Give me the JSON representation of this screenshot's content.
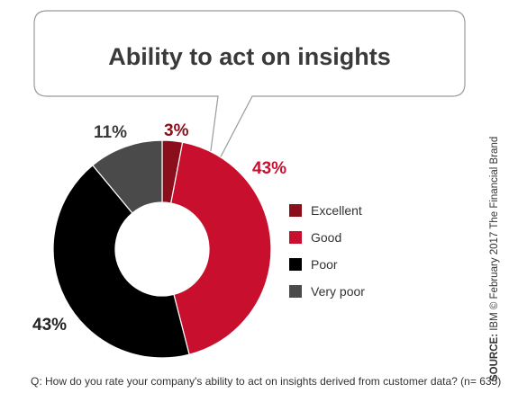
{
  "chart_data": {
    "type": "pie",
    "title": "Ability to act on insights",
    "categories": [
      "Excellent",
      "Good",
      "Poor",
      "Very poor"
    ],
    "values": [
      3,
      43,
      43,
      11
    ],
    "value_labels": [
      "3%",
      "43%",
      "43%",
      "11%"
    ],
    "colors": [
      "#8b0e1c",
      "#c8102e",
      "#000000",
      "#4a4a4a"
    ],
    "label_colors": [
      "#8b0e1c",
      "#c8102e",
      "#222222",
      "#3a3a3a"
    ],
    "donut": true,
    "legend_position": "right"
  },
  "question": "Q: How do you rate your company's ability to act on insights derived from customer data? (n= 635)",
  "source": {
    "label": "SOURCE:",
    "text": " IBM © February 2017 The Financial Brand"
  }
}
